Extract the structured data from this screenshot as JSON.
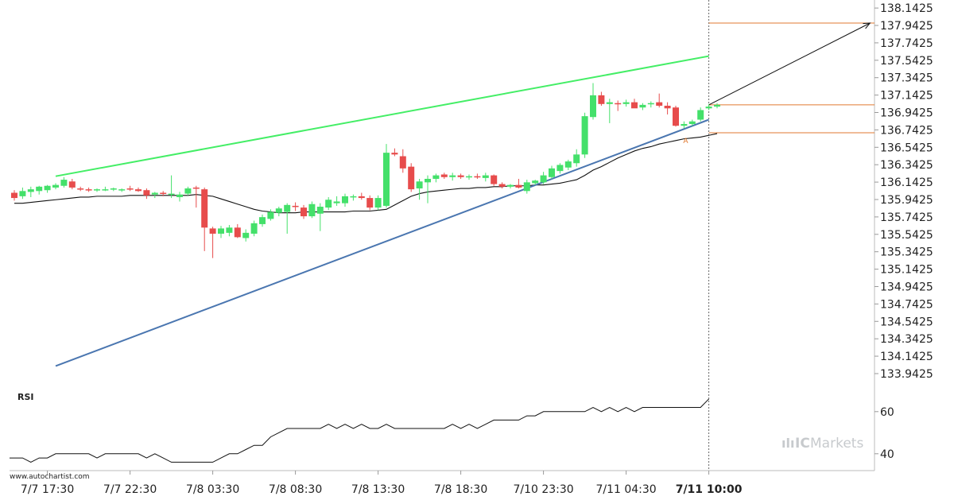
{
  "chart_data": [
    {
      "type": "candlestick",
      "title": "",
      "y_ticks": [
        "138.1425",
        "137.9425",
        "137.7425",
        "137.5425",
        "137.3425",
        "137.1425",
        "136.9425",
        "136.7425",
        "136.5425",
        "136.3425",
        "136.1425",
        "135.9425",
        "135.7425",
        "135.5425",
        "135.3425",
        "135.1425",
        "134.9425",
        "134.7425",
        "134.5425",
        "134.3425",
        "134.1425",
        "133.9425"
      ],
      "ylim": [
        133.86,
        138.18
      ],
      "x_ticks": [
        {
          "label": "7/7 17:30",
          "bold": false
        },
        {
          "label": "7/7 22:30",
          "bold": false
        },
        {
          "label": "7/8 03:30",
          "bold": false
        },
        {
          "label": "7/8 08:30",
          "bold": false
        },
        {
          "label": "7/8 13:30",
          "bold": false
        },
        {
          "label": "7/8 18:30",
          "bold": false
        },
        {
          "label": "7/10 23:30",
          "bold": false
        },
        {
          "label": "7/11 04:30",
          "bold": false
        },
        {
          "label": "7/11 10:00",
          "bold": true
        }
      ],
      "x_tick_candle_index": [
        4,
        14,
        24,
        34,
        44,
        54,
        64,
        74,
        84
      ],
      "candles": [
        {
          "o": 136.02,
          "h": 136.05,
          "l": 135.93,
          "c": 135.96
        },
        {
          "o": 135.98,
          "h": 136.08,
          "l": 135.95,
          "c": 136.04
        },
        {
          "o": 136.03,
          "h": 136.09,
          "l": 135.97,
          "c": 136.06
        },
        {
          "o": 136.04,
          "h": 136.1,
          "l": 136.0,
          "c": 136.09
        },
        {
          "o": 136.05,
          "h": 136.11,
          "l": 136.02,
          "c": 136.1
        },
        {
          "o": 136.08,
          "h": 136.13,
          "l": 136.06,
          "c": 136.11
        },
        {
          "o": 136.1,
          "h": 136.2,
          "l": 136.08,
          "c": 136.17
        },
        {
          "o": 136.15,
          "h": 136.18,
          "l": 136.06,
          "c": 136.08
        },
        {
          "o": 136.07,
          "h": 136.09,
          "l": 136.04,
          "c": 136.06
        },
        {
          "o": 136.06,
          "h": 136.08,
          "l": 136.03,
          "c": 136.05
        },
        {
          "o": 136.05,
          "h": 136.07,
          "l": 136.03,
          "c": 136.06
        },
        {
          "o": 136.06,
          "h": 136.09,
          "l": 136.04,
          "c": 136.06
        },
        {
          "o": 136.06,
          "h": 136.08,
          "l": 136.04,
          "c": 136.07
        },
        {
          "o": 136.05,
          "h": 136.07,
          "l": 136.03,
          "c": 136.06
        },
        {
          "o": 136.07,
          "h": 136.1,
          "l": 136.04,
          "c": 136.06
        },
        {
          "o": 136.06,
          "h": 136.08,
          "l": 136.03,
          "c": 136.04
        },
        {
          "o": 136.05,
          "h": 136.07,
          "l": 135.95,
          "c": 135.99
        },
        {
          "o": 136.0,
          "h": 136.03,
          "l": 135.96,
          "c": 136.02
        },
        {
          "o": 136.02,
          "h": 136.04,
          "l": 135.98,
          "c": 136.01
        },
        {
          "o": 136.0,
          "h": 136.22,
          "l": 135.96,
          "c": 136.01
        },
        {
          "o": 135.97,
          "h": 136.03,
          "l": 135.92,
          "c": 136.0
        },
        {
          "o": 136.01,
          "h": 136.09,
          "l": 135.99,
          "c": 136.07
        },
        {
          "o": 136.08,
          "h": 136.1,
          "l": 135.85,
          "c": 136.07
        },
        {
          "o": 136.06,
          "h": 136.08,
          "l": 135.35,
          "c": 135.62
        },
        {
          "o": 135.61,
          "h": 135.63,
          "l": 135.27,
          "c": 135.55
        },
        {
          "o": 135.55,
          "h": 135.64,
          "l": 135.5,
          "c": 135.61
        },
        {
          "o": 135.56,
          "h": 135.65,
          "l": 135.52,
          "c": 135.62
        },
        {
          "o": 135.62,
          "h": 135.66,
          "l": 135.5,
          "c": 135.51
        },
        {
          "o": 135.5,
          "h": 135.6,
          "l": 135.46,
          "c": 135.56
        },
        {
          "o": 135.55,
          "h": 135.7,
          "l": 135.52,
          "c": 135.67
        },
        {
          "o": 135.66,
          "h": 135.77,
          "l": 135.63,
          "c": 135.74
        },
        {
          "o": 135.72,
          "h": 135.83,
          "l": 135.7,
          "c": 135.8
        },
        {
          "o": 135.79,
          "h": 135.86,
          "l": 135.75,
          "c": 135.84
        },
        {
          "o": 135.8,
          "h": 135.9,
          "l": 135.55,
          "c": 135.88
        },
        {
          "o": 135.87,
          "h": 135.91,
          "l": 135.81,
          "c": 135.86
        },
        {
          "o": 135.85,
          "h": 135.88,
          "l": 135.72,
          "c": 135.75
        },
        {
          "o": 135.75,
          "h": 135.92,
          "l": 135.73,
          "c": 135.89
        },
        {
          "o": 135.78,
          "h": 135.9,
          "l": 135.58,
          "c": 135.86
        },
        {
          "o": 135.85,
          "h": 135.97,
          "l": 135.82,
          "c": 135.94
        },
        {
          "o": 135.9,
          "h": 135.98,
          "l": 135.87,
          "c": 135.92
        },
        {
          "o": 135.9,
          "h": 136.01,
          "l": 135.86,
          "c": 135.98
        },
        {
          "o": 135.97,
          "h": 136.0,
          "l": 135.93,
          "c": 135.98
        },
        {
          "o": 135.98,
          "h": 136.02,
          "l": 135.94,
          "c": 135.96
        },
        {
          "o": 135.96,
          "h": 135.99,
          "l": 135.82,
          "c": 135.85
        },
        {
          "o": 135.85,
          "h": 135.99,
          "l": 135.82,
          "c": 135.96
        },
        {
          "o": 135.87,
          "h": 136.58,
          "l": 135.85,
          "c": 136.48
        },
        {
          "o": 136.48,
          "h": 136.53,
          "l": 136.44,
          "c": 136.46
        },
        {
          "o": 136.44,
          "h": 136.52,
          "l": 136.25,
          "c": 136.3
        },
        {
          "o": 136.32,
          "h": 136.36,
          "l": 136.03,
          "c": 136.06
        },
        {
          "o": 136.07,
          "h": 136.18,
          "l": 135.94,
          "c": 136.15
        },
        {
          "o": 136.14,
          "h": 136.22,
          "l": 135.9,
          "c": 136.18
        },
        {
          "o": 136.18,
          "h": 136.24,
          "l": 136.14,
          "c": 136.22
        },
        {
          "o": 136.23,
          "h": 136.25,
          "l": 136.18,
          "c": 136.2
        },
        {
          "o": 136.2,
          "h": 136.25,
          "l": 136.16,
          "c": 136.22
        },
        {
          "o": 136.22,
          "h": 136.24,
          "l": 136.18,
          "c": 136.2
        },
        {
          "o": 136.2,
          "h": 136.23,
          "l": 136.17,
          "c": 136.21
        },
        {
          "o": 136.21,
          "h": 136.24,
          "l": 136.18,
          "c": 136.2
        },
        {
          "o": 136.19,
          "h": 136.25,
          "l": 136.15,
          "c": 136.22
        },
        {
          "o": 136.22,
          "h": 136.23,
          "l": 136.1,
          "c": 136.12
        },
        {
          "o": 136.12,
          "h": 136.14,
          "l": 136.07,
          "c": 136.09
        },
        {
          "o": 136.09,
          "h": 136.12,
          "l": 136.07,
          "c": 136.11
        },
        {
          "o": 136.11,
          "h": 136.18,
          "l": 136.07,
          "c": 136.08
        },
        {
          "o": 136.04,
          "h": 136.17,
          "l": 136.01,
          "c": 136.14
        },
        {
          "o": 136.13,
          "h": 136.17,
          "l": 136.11,
          "c": 136.16
        },
        {
          "o": 136.14,
          "h": 136.26,
          "l": 136.12,
          "c": 136.22
        },
        {
          "o": 136.2,
          "h": 136.33,
          "l": 136.18,
          "c": 136.3
        },
        {
          "o": 136.27,
          "h": 136.36,
          "l": 136.24,
          "c": 136.34
        },
        {
          "o": 136.31,
          "h": 136.4,
          "l": 136.28,
          "c": 136.38
        },
        {
          "o": 136.36,
          "h": 136.52,
          "l": 136.32,
          "c": 136.46
        },
        {
          "o": 136.46,
          "h": 136.94,
          "l": 136.42,
          "c": 136.9
        },
        {
          "o": 136.89,
          "h": 137.28,
          "l": 136.86,
          "c": 137.14
        },
        {
          "o": 137.14,
          "h": 137.18,
          "l": 137.02,
          "c": 137.04
        },
        {
          "o": 137.04,
          "h": 137.1,
          "l": 136.82,
          "c": 137.06
        },
        {
          "o": 137.05,
          "h": 137.08,
          "l": 136.96,
          "c": 137.04
        },
        {
          "o": 137.04,
          "h": 137.09,
          "l": 137.01,
          "c": 137.06
        },
        {
          "o": 137.06,
          "h": 137.1,
          "l": 137.01,
          "c": 136.99
        },
        {
          "o": 137.0,
          "h": 137.05,
          "l": 136.97,
          "c": 137.03
        },
        {
          "o": 137.04,
          "h": 137.07,
          "l": 137.0,
          "c": 137.05
        },
        {
          "o": 137.06,
          "h": 137.16,
          "l": 137.0,
          "c": 137.02
        },
        {
          "o": 137.02,
          "h": 137.06,
          "l": 136.92,
          "c": 136.99
        },
        {
          "o": 137.0,
          "h": 137.02,
          "l": 136.78,
          "c": 136.79
        },
        {
          "o": 136.79,
          "h": 136.84,
          "l": 136.76,
          "c": 136.81
        },
        {
          "o": 136.81,
          "h": 136.86,
          "l": 136.79,
          "c": 136.84
        },
        {
          "o": 136.86,
          "h": 137.0,
          "l": 136.84,
          "c": 136.97
        },
        {
          "o": 136.99,
          "h": 137.04,
          "l": 136.97,
          "c": 137.01
        },
        {
          "o": 137.01,
          "h": 137.05,
          "l": 136.99,
          "c": 137.03
        }
      ],
      "moving_average": [
        135.9,
        135.9,
        135.91,
        135.92,
        135.93,
        135.94,
        135.95,
        135.96,
        135.97,
        135.97,
        135.98,
        135.98,
        135.98,
        135.98,
        135.99,
        135.99,
        135.99,
        135.99,
        135.99,
        135.99,
        135.99,
        135.99,
        136.0,
        135.99,
        135.98,
        135.95,
        135.92,
        135.89,
        135.86,
        135.83,
        135.81,
        135.8,
        135.79,
        135.79,
        135.79,
        135.8,
        135.8,
        135.8,
        135.8,
        135.8,
        135.8,
        135.81,
        135.81,
        135.81,
        135.82,
        135.83,
        135.88,
        135.93,
        135.98,
        136.01,
        136.03,
        136.04,
        136.05,
        136.06,
        136.07,
        136.07,
        136.08,
        136.08,
        136.09,
        136.09,
        136.1,
        136.1,
        136.1,
        136.11,
        136.11,
        136.12,
        136.13,
        136.15,
        136.17,
        136.22,
        136.28,
        136.32,
        136.37,
        136.42,
        136.46,
        136.5,
        136.53,
        136.55,
        136.58,
        136.6,
        136.62,
        136.64,
        136.65,
        136.66,
        136.68,
        136.7
      ],
      "overlays": {
        "resistance_line": {
          "from": [
            5,
            136.21
          ],
          "to": [
            84,
            137.59
          ],
          "color": "#44ee66"
        },
        "support_line": {
          "from": [
            5,
            134.03
          ],
          "to": [
            84,
            136.86
          ],
          "color": "#4a76b0"
        },
        "forecast_arrow": {
          "from": [
            84,
            137.03
          ],
          "to": [
            103.5,
            137.97
          ],
          "color": "#111111"
        },
        "levels": [
          {
            "value": 137.97,
            "from": 84,
            "color": "#e07a30"
          },
          {
            "value": 137.03,
            "from": 84,
            "color": "#e07a30"
          },
          {
            "value": 136.71,
            "from": 84,
            "color": "#e07a30"
          }
        ],
        "marker": {
          "label": "A",
          "index": 81,
          "value": 136.7,
          "color": "#e07a30"
        },
        "current_time_index": 84
      }
    },
    {
      "type": "line",
      "name": "RSI",
      "label": "RSI",
      "y_ticks": [
        "60",
        "40"
      ],
      "ylim": [
        32,
        72
      ],
      "values": [
        38,
        38,
        36,
        38,
        38,
        40,
        40,
        40,
        40,
        40,
        38,
        40,
        40,
        40,
        40,
        40,
        38,
        40,
        38,
        36,
        36,
        36,
        36,
        36,
        36,
        38,
        40,
        40,
        42,
        44,
        44,
        48,
        50,
        52,
        52,
        52,
        52,
        52,
        54,
        52,
        54,
        52,
        54,
        52,
        52,
        54,
        52,
        52,
        52,
        52,
        52,
        52,
        52,
        54,
        52,
        54,
        52,
        54,
        56,
        56,
        56,
        56,
        58,
        58,
        60,
        60,
        60,
        60,
        60,
        60,
        62,
        60,
        62,
        60,
        62,
        60,
        62,
        62,
        62,
        62,
        62,
        62,
        62,
        62,
        66
      ]
    }
  ],
  "footer": {
    "source": "www.autochartist.com",
    "logo_bars": "ılı",
    "logo_ic": "IC",
    "logo_markets": "Markets"
  }
}
